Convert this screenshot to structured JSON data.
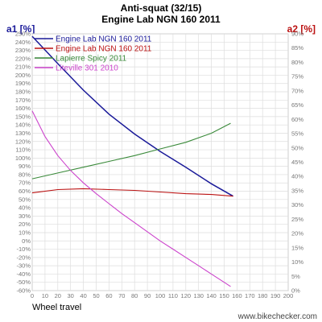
{
  "chart_data": {
    "type": "line",
    "title": "Anti-squat (32/15)",
    "subtitle": "Engine Lab NGN 160 2011",
    "xlabel": "Wheel travel",
    "y1label": "a1 [%]",
    "y2label": "a2 [%]",
    "xlim": [
      0,
      200
    ],
    "ylim": [
      -60,
      250
    ],
    "y2lim": [
      0,
      90
    ],
    "x_ticks": [
      "0",
      "10",
      "20",
      "30",
      "40",
      "50",
      "60",
      "70",
      "80",
      "90",
      "100",
      "110",
      "120",
      "130",
      "140",
      "150",
      "160",
      "170",
      "180",
      "190",
      "200"
    ],
    "y1_ticks": [
      "-60%",
      "-50%",
      "-40%",
      "-30%",
      "-20%",
      "-10%",
      "0%",
      "10%",
      "20%",
      "30%",
      "40%",
      "50%",
      "60%",
      "70%",
      "80%",
      "90%",
      "100%",
      "110%",
      "120%",
      "130%",
      "140%",
      "150%",
      "160%",
      "170%",
      "180%",
      "190%",
      "200%",
      "210%",
      "220%",
      "230%",
      "240%",
      "250%"
    ],
    "y2_ticks": [
      "0%",
      "5%",
      "10%",
      "15%",
      "20%",
      "25%",
      "30%",
      "35%",
      "40%",
      "45%",
      "50%",
      "55%",
      "60%",
      "65%",
      "70%",
      "75%",
      "80%",
      "85%",
      "90%"
    ],
    "grid": true,
    "legend_position": "top-left",
    "series": [
      {
        "name": "Engine Lab NGN 160 2011",
        "axis": "left",
        "color": "#1a1a99",
        "x": [
          0,
          20,
          40,
          60,
          80,
          100,
          120,
          140,
          157
        ],
        "y": [
          247,
          214,
          182,
          153,
          129,
          108,
          89,
          69,
          54
        ]
      },
      {
        "name": "Engine Lab NGN 160 2011",
        "axis": "left",
        "color": "#bb1111",
        "x": [
          0,
          20,
          40,
          60,
          80,
          100,
          120,
          140,
          157
        ],
        "y": [
          58,
          62,
          63,
          62,
          61,
          59,
          57,
          56,
          54
        ]
      },
      {
        "name": "Lapierre Spicy 2011",
        "axis": "left",
        "color": "#3a8a3a",
        "x": [
          0,
          20,
          40,
          60,
          80,
          100,
          120,
          140,
          155
        ],
        "y": [
          75,
          82,
          89,
          96,
          103,
          111,
          119,
          130,
          142
        ]
      },
      {
        "name": "Liteville 301 2010",
        "axis": "left",
        "color": "#cc44cc",
        "x": [
          0,
          10,
          20,
          30,
          40,
          50,
          60,
          70,
          80,
          90,
          100,
          110,
          120,
          130,
          140,
          150,
          155
        ],
        "y": [
          157,
          126,
          103,
          85,
          70,
          57,
          45,
          33,
          22,
          11,
          0,
          -10,
          -20,
          -30,
          -40,
          -50,
          -55
        ]
      }
    ]
  },
  "watermark": "www.bikechecker.com"
}
